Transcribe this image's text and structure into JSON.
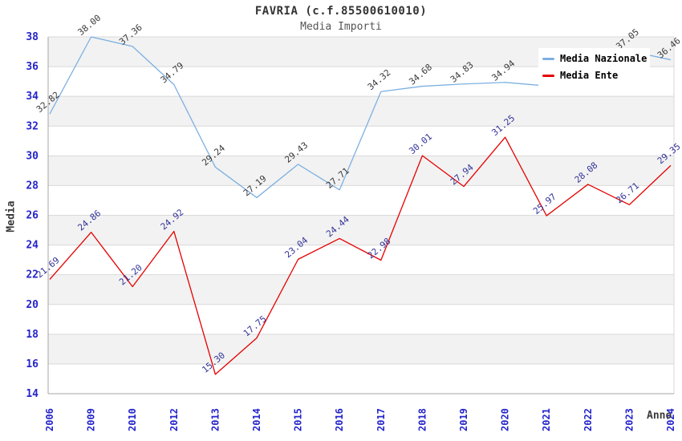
{
  "header": {
    "title": "FAVRIA (c.f.85500610010)",
    "subtitle": "Media Importi"
  },
  "chart_data": {
    "type": "line",
    "title": "FAVRIA (c.f.85500610010)",
    "subtitle": "Media Importi",
    "xlabel": "Anno",
    "ylabel": "Media",
    "ylim": [
      14,
      38
    ],
    "y_tick_step": 2,
    "grid": "horizontal gridlines with alternating gray bands",
    "legend_position": "top-right",
    "categories": [
      "2006",
      "2009",
      "2010",
      "2012",
      "2013",
      "2014",
      "2015",
      "2016",
      "2017",
      "2018",
      "2019",
      "2020",
      "2021",
      "2022",
      "2023",
      "2024"
    ],
    "series": [
      {
        "name": "Media Nazionale",
        "color": "#7cb0e2",
        "label_color": "#3a3a3a",
        "values": [
          32.82,
          38.0,
          37.36,
          34.79,
          29.24,
          27.19,
          29.43,
          27.71,
          34.32,
          34.68,
          34.83,
          34.94,
          34.7,
          34.7,
          37.05,
          36.46
        ],
        "labels": [
          "32.82",
          "38.00",
          "37.36",
          "34.79",
          "29.24",
          "27.19",
          "29.43",
          "27.71",
          "34.32",
          "34.68",
          "34.83",
          "34.94",
          null,
          null,
          "37.05",
          "36.46"
        ]
      },
      {
        "name": "Media Ente",
        "color": "#e60000",
        "label_color": "#333399",
        "values": [
          21.69,
          24.86,
          21.2,
          24.92,
          15.3,
          17.75,
          23.04,
          24.44,
          22.98,
          30.01,
          27.94,
          31.25,
          25.97,
          28.08,
          26.71,
          29.35
        ],
        "labels": [
          "21.69",
          "24.86",
          "21.20",
          "24.92",
          "15.30",
          "17.75",
          "23.04",
          "24.44",
          "22.98",
          "30.01",
          "27.94",
          "31.25",
          "25.97",
          "28.08",
          "26.71",
          "29.35"
        ]
      }
    ],
    "colors": {
      "tick_label": "#2424cc",
      "grid": "#d9d9d9",
      "band": "#f2f2f2",
      "axis": "#a6a6a6",
      "title": "#333333",
      "subtitle": "#555555"
    }
  }
}
